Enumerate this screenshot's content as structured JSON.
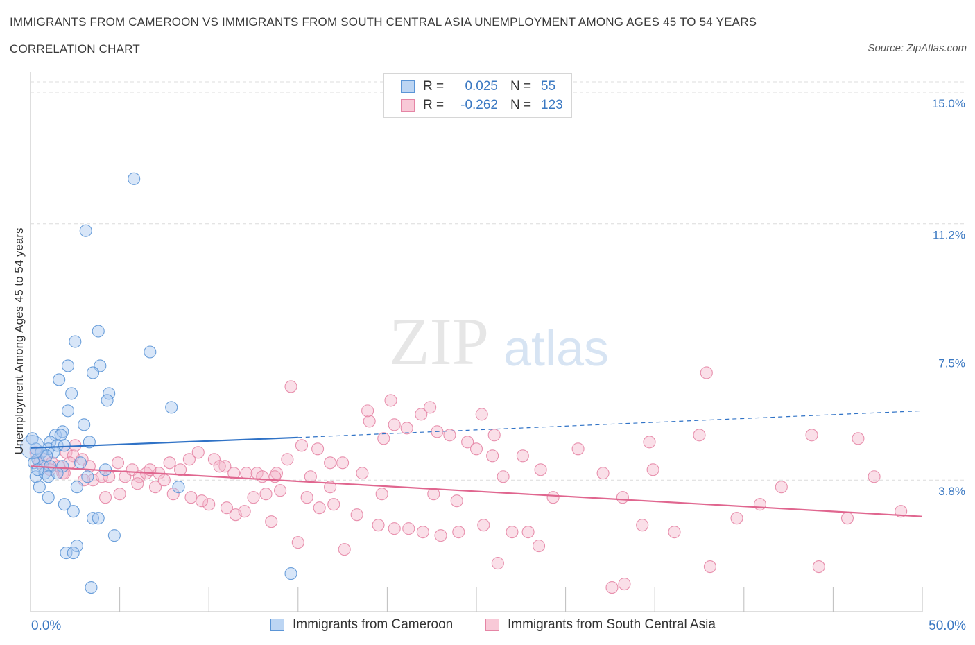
{
  "header": {
    "title": "IMMIGRANTS FROM CAMEROON VS IMMIGRANTS FROM SOUTH CENTRAL ASIA UNEMPLOYMENT AMONG AGES 45 TO 54 YEARS",
    "subtitle": "CORRELATION CHART",
    "source": "Source: ZipAtlas.com"
  },
  "legend": {
    "rows": [
      {
        "r_label": "R =",
        "r_value": "0.025",
        "n_label": "N =",
        "n_value": "55"
      },
      {
        "r_label": "R =",
        "r_value": "-0.262",
        "n_label": "N =",
        "n_value": "123"
      }
    ]
  },
  "bottom_legend": {
    "series1": "Immigrants from Cameroon",
    "series2": "Immigrants from South Central Asia"
  },
  "watermark": {
    "part1": "ZIP",
    "part2": "atlas"
  },
  "colors": {
    "blue_fill": "#a9c8ef",
    "blue_stroke": "#5b95d6",
    "blue_line": "#2f72c6",
    "pink_fill": "#f5b8cb",
    "pink_stroke": "#e585a5",
    "pink_line": "#e0668f",
    "tick_label": "#3a78c2",
    "grid": "#dcdcdc"
  },
  "chart_data": {
    "type": "scatter",
    "title": "IMMIGRANTS FROM CAMEROON VS IMMIGRANTS FROM SOUTH CENTRAL ASIA UNEMPLOYMENT AMONG AGES 45 TO 54 YEARS",
    "xlabel": "",
    "ylabel": "Unemployment Among Ages 45 to 54 years",
    "xlim": [
      0,
      50
    ],
    "ylim": [
      0,
      15.3
    ],
    "x_tick_labels": [
      {
        "value": 0,
        "label": "0.0%"
      },
      {
        "value": 50,
        "label": "50.0%"
      }
    ],
    "y_ticks": [
      {
        "value": 3.8,
        "label": "3.8%"
      },
      {
        "value": 7.5,
        "label": "7.5%"
      },
      {
        "value": 11.2,
        "label": "11.2%"
      },
      {
        "value": 15.0,
        "label": "15.0%"
      }
    ],
    "series": [
      {
        "name": "Immigrants from Cameroon",
        "R": 0.025,
        "N": 55,
        "trend": {
          "x0": 0,
          "y0": 4.73,
          "x1": 15,
          "y1": 5.03,
          "dashed_to_x": 50,
          "dashed_to_y": 5.8
        },
        "points": [
          [
            5.8,
            12.5
          ],
          [
            3.1,
            11.0
          ],
          [
            3.8,
            8.1
          ],
          [
            2.5,
            7.8
          ],
          [
            6.7,
            7.5
          ],
          [
            2.1,
            7.1
          ],
          [
            3.9,
            7.1
          ],
          [
            1.6,
            6.7
          ],
          [
            3.5,
            6.9
          ],
          [
            2.3,
            6.3
          ],
          [
            4.4,
            6.3
          ],
          [
            4.3,
            6.1
          ],
          [
            7.9,
            5.9
          ],
          [
            2.1,
            5.8
          ],
          [
            3.0,
            5.4
          ],
          [
            1.4,
            5.1
          ],
          [
            1.8,
            5.2
          ],
          [
            1.1,
            4.9
          ],
          [
            1.7,
            5.1
          ],
          [
            3.3,
            4.9
          ],
          [
            1.0,
            4.7
          ],
          [
            1.3,
            4.6
          ],
          [
            0.4,
            4.4
          ],
          [
            0.2,
            4.3
          ],
          [
            0.1,
            5.0
          ],
          [
            0.3,
            4.7
          ],
          [
            0.6,
            4.6
          ],
          [
            0.9,
            4.5
          ],
          [
            1.5,
            4.8
          ],
          [
            1.9,
            4.8
          ],
          [
            0.7,
            4.2
          ],
          [
            1.1,
            4.2
          ],
          [
            1.8,
            4.2
          ],
          [
            2.8,
            4.3
          ],
          [
            0.3,
            3.9
          ],
          [
            0.8,
            4.0
          ],
          [
            1.0,
            3.9
          ],
          [
            1.5,
            4.0
          ],
          [
            2.6,
            3.6
          ],
          [
            3.2,
            3.9
          ],
          [
            4.2,
            4.1
          ],
          [
            8.3,
            3.6
          ],
          [
            0.5,
            3.6
          ],
          [
            1.0,
            3.3
          ],
          [
            1.9,
            3.1
          ],
          [
            2.4,
            2.9
          ],
          [
            3.5,
            2.7
          ],
          [
            3.8,
            2.7
          ],
          [
            4.7,
            2.2
          ],
          [
            2.6,
            1.9
          ],
          [
            2.0,
            1.7
          ],
          [
            2.4,
            1.7
          ],
          [
            14.6,
            1.1
          ],
          [
            3.4,
            0.7
          ],
          [
            0.4,
            4.1
          ]
        ]
      },
      {
        "name": "Immigrants from South Central Asia",
        "R": -0.262,
        "N": 123,
        "trend": {
          "x0": 0,
          "y0": 4.2,
          "x1": 50,
          "y1": 2.75
        },
        "points": [
          [
            0.3,
            4.6
          ],
          [
            0.5,
            4.3
          ],
          [
            0.8,
            4.4
          ],
          [
            1.2,
            4.3
          ],
          [
            1.6,
            4.2
          ],
          [
            2.0,
            4.6
          ],
          [
            2.4,
            4.5
          ],
          [
            2.5,
            4.8
          ],
          [
            2.9,
            4.4
          ],
          [
            1.1,
            4.1
          ],
          [
            1.8,
            4.0
          ],
          [
            3.3,
            4.2
          ],
          [
            3.5,
            3.8
          ],
          [
            4.0,
            3.9
          ],
          [
            4.4,
            3.9
          ],
          [
            4.9,
            4.3
          ],
          [
            5.3,
            3.9
          ],
          [
            5.7,
            4.1
          ],
          [
            6.1,
            3.9
          ],
          [
            6.5,
            4.0
          ],
          [
            7.2,
            4.0
          ],
          [
            7.8,
            4.3
          ],
          [
            8.4,
            4.1
          ],
          [
            8.9,
            4.4
          ],
          [
            9.4,
            4.6
          ],
          [
            10.3,
            4.4
          ],
          [
            10.9,
            4.2
          ],
          [
            11.4,
            4.0
          ],
          [
            12.1,
            4.0
          ],
          [
            12.7,
            4.0
          ],
          [
            13.0,
            3.9
          ],
          [
            13.8,
            4.0
          ],
          [
            14.4,
            4.4
          ],
          [
            15.2,
            4.8
          ],
          [
            16.1,
            4.7
          ],
          [
            16.8,
            4.3
          ],
          [
            17.5,
            4.3
          ],
          [
            18.6,
            4.0
          ],
          [
            19.0,
            5.5
          ],
          [
            19.8,
            5.0
          ],
          [
            20.4,
            5.4
          ],
          [
            21.1,
            5.3
          ],
          [
            21.9,
            5.7
          ],
          [
            22.4,
            5.9
          ],
          [
            22.8,
            5.2
          ],
          [
            23.5,
            5.1
          ],
          [
            24.5,
            4.9
          ],
          [
            25.0,
            4.7
          ],
          [
            25.9,
            4.5
          ],
          [
            26.5,
            3.9
          ],
          [
            27.6,
            4.5
          ],
          [
            28.6,
            4.1
          ],
          [
            29.3,
            3.3
          ],
          [
            30.7,
            4.7
          ],
          [
            32.1,
            4.0
          ],
          [
            33.2,
            3.3
          ],
          [
            34.3,
            2.5
          ],
          [
            34.9,
            4.1
          ],
          [
            36.1,
            2.3
          ],
          [
            37.5,
            5.1
          ],
          [
            38.1,
            1.3
          ],
          [
            39.6,
            2.7
          ],
          [
            40.9,
            3.1
          ],
          [
            42.1,
            3.6
          ],
          [
            43.8,
            5.1
          ],
          [
            44.2,
            1.3
          ],
          [
            45.8,
            2.7
          ],
          [
            47.3,
            3.9
          ],
          [
            48.8,
            2.9
          ],
          [
            37.9,
            6.9
          ],
          [
            46.4,
            5.0
          ],
          [
            34.7,
            4.9
          ],
          [
            14.6,
            6.5
          ],
          [
            20.2,
            6.1
          ],
          [
            18.9,
            5.8
          ],
          [
            25.3,
            5.7
          ],
          [
            26.0,
            5.1
          ],
          [
            1.9,
            4.0
          ],
          [
            3.0,
            3.8
          ],
          [
            6.0,
            3.7
          ],
          [
            7.0,
            3.6
          ],
          [
            8.0,
            3.4
          ],
          [
            9.0,
            3.3
          ],
          [
            10.0,
            3.1
          ],
          [
            11.0,
            3.0
          ],
          [
            11.5,
            2.8
          ],
          [
            12.5,
            3.3
          ],
          [
            13.2,
            3.4
          ],
          [
            14.0,
            3.5
          ],
          [
            15.5,
            3.3
          ],
          [
            16.2,
            3.0
          ],
          [
            17.0,
            3.1
          ],
          [
            18.3,
            2.8
          ],
          [
            19.5,
            2.5
          ],
          [
            20.4,
            2.4
          ],
          [
            21.2,
            2.4
          ],
          [
            22.0,
            2.3
          ],
          [
            23.0,
            2.2
          ],
          [
            24.0,
            2.3
          ],
          [
            25.4,
            2.5
          ],
          [
            27.0,
            2.3
          ],
          [
            27.9,
            2.3
          ],
          [
            28.5,
            1.9
          ],
          [
            26.2,
            1.4
          ],
          [
            32.6,
            0.7
          ],
          [
            33.3,
            0.8
          ],
          [
            15.0,
            2.0
          ],
          [
            17.6,
            1.8
          ],
          [
            13.5,
            2.6
          ],
          [
            5.0,
            3.4
          ],
          [
            9.6,
            3.2
          ],
          [
            12.0,
            2.9
          ],
          [
            2.2,
            4.3
          ],
          [
            4.2,
            3.3
          ],
          [
            6.7,
            4.1
          ],
          [
            7.5,
            3.8
          ],
          [
            10.6,
            4.2
          ],
          [
            13.7,
            3.9
          ],
          [
            15.7,
            3.9
          ],
          [
            16.8,
            3.6
          ],
          [
            19.7,
            3.4
          ],
          [
            22.6,
            3.4
          ],
          [
            23.9,
            3.2
          ]
        ]
      }
    ]
  }
}
